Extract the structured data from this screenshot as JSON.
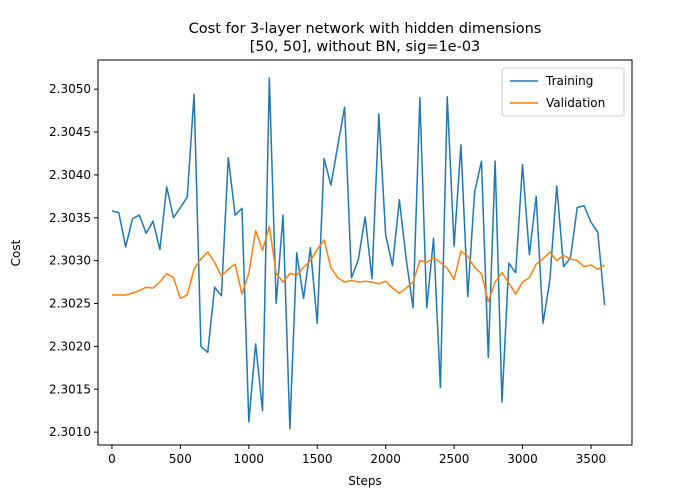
{
  "chart_data": {
    "type": "line",
    "title": [
      "Cost for 3-layer network with hidden dimensions",
      "[50, 50], without BN, sig=1e-03"
    ],
    "x_label": "Steps",
    "y_label": "Cost",
    "x": [
      0,
      50,
      100,
      150,
      200,
      250,
      300,
      350,
      400,
      450,
      500,
      550,
      600,
      650,
      700,
      750,
      800,
      850,
      900,
      950,
      1000,
      1050,
      1100,
      1150,
      1200,
      1250,
      1300,
      1350,
      1400,
      1450,
      1500,
      1550,
      1600,
      1650,
      1700,
      1750,
      1800,
      1850,
      1900,
      1950,
      2000,
      2050,
      2100,
      2150,
      2200,
      2250,
      2300,
      2350,
      2400,
      2450,
      2500,
      2550,
      2600,
      2650,
      2700,
      2750,
      2800,
      2850,
      2900,
      2950,
      3000,
      3050,
      3100,
      3150,
      3200,
      3250,
      3300,
      3350,
      3400,
      3450,
      3500,
      3550,
      3600
    ],
    "series": [
      {
        "name": "Training",
        "color": "#1f77b4",
        "values": [
          2.30358,
          2.30356,
          2.30316,
          2.30349,
          2.30353,
          2.30332,
          2.30346,
          2.30313,
          2.30386,
          2.3035,
          2.30362,
          2.30374,
          2.30494,
          2.302,
          2.30193,
          2.30269,
          2.30259,
          2.3042,
          2.30353,
          2.30361,
          2.30112,
          2.30203,
          2.30125,
          2.30513,
          2.3025,
          2.30353,
          2.30104,
          2.30309,
          2.30256,
          2.30315,
          2.30227,
          2.30419,
          2.30388,
          2.30434,
          2.30479,
          2.3028,
          2.30301,
          2.30351,
          2.30279,
          2.30471,
          2.3033,
          2.30294,
          2.30371,
          2.30302,
          2.30245,
          2.3049,
          2.30245,
          2.30326,
          2.30152,
          2.30491,
          2.30317,
          2.30435,
          2.30258,
          2.3038,
          2.30416,
          2.30187,
          2.30416,
          2.30135,
          2.30297,
          2.30286,
          2.30412,
          2.30307,
          2.30375,
          2.30227,
          2.30278,
          2.30387,
          2.30293,
          2.30303,
          2.30362,
          2.30364,
          2.30345,
          2.30333,
          2.30248
        ]
      },
      {
        "name": "Validation",
        "color": "#ff7f0e",
        "values": [
          2.3026,
          2.3026,
          2.3026,
          2.30262,
          2.30265,
          2.30269,
          2.30268,
          2.30275,
          2.30285,
          2.3028,
          2.30256,
          2.3026,
          2.3029,
          2.30302,
          2.3031,
          2.30298,
          2.30282,
          2.3029,
          2.30296,
          2.30261,
          2.30285,
          2.30335,
          2.30312,
          2.3034,
          2.30285,
          2.30275,
          2.30285,
          2.30283,
          2.30292,
          2.303,
          2.30313,
          2.30324,
          2.30292,
          2.3028,
          2.30275,
          2.30277,
          2.30275,
          2.30276,
          2.30275,
          2.30273,
          2.30276,
          2.30268,
          2.30262,
          2.30268,
          2.30275,
          2.303,
          2.30298,
          2.30303,
          2.30298,
          2.30291,
          2.30278,
          2.30311,
          2.30305,
          2.30292,
          2.30285,
          2.30252,
          2.30275,
          2.30286,
          2.30274,
          2.30261,
          2.30275,
          2.3028,
          2.30296,
          2.30302,
          2.3031,
          2.303,
          2.30306,
          2.30302,
          2.303,
          2.30293,
          2.30295,
          2.3029,
          2.30295
        ]
      }
    ],
    "xlim": [
      -102,
      3800
    ],
    "ylim": [
      2.30085,
      2.30534
    ],
    "xticks": [
      0,
      500,
      1000,
      1500,
      2000,
      2500,
      3000,
      3500
    ],
    "yticks": [
      {
        "value": 2.301,
        "label": "2.3010"
      },
      2.3015,
      {
        "value": 2.302,
        "label": "2.3020"
      },
      2.3025,
      {
        "value": 2.303,
        "label": "2.3030"
      },
      2.3035,
      {
        "value": 2.304,
        "label": "2.3040"
      },
      2.3045,
      {
        "value": 2.305,
        "label": "2.3050"
      }
    ],
    "legend": "upper right",
    "grid": false
  }
}
